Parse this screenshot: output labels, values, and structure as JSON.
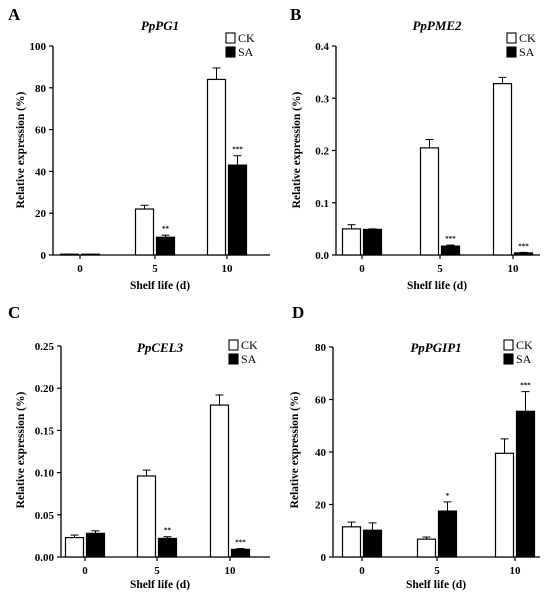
{
  "figure": {
    "panels": [
      {
        "letter": "A",
        "title": "PpPG1"
      },
      {
        "letter": "B",
        "title": "PpPME2"
      },
      {
        "letter": "C",
        "title": "PpCEL3"
      },
      {
        "letter": "D",
        "title": "PpPGIP1"
      }
    ]
  },
  "chart_data": [
    {
      "type": "bar",
      "panel": "A",
      "title": "PpPG1",
      "xlabel": "Shelf life (d)",
      "ylabel": "Relative expression (%)",
      "categories": [
        "0",
        "5",
        "10"
      ],
      "ylim": [
        0,
        100
      ],
      "yticks": [
        "0",
        "20",
        "40",
        "60",
        "80",
        "100"
      ],
      "legend_position": "top-right",
      "series": [
        {
          "name": "CK",
          "fill": "#ffffff",
          "values": [
            0.3,
            22,
            84
          ],
          "errors": [
            0.1,
            1.8,
            5.5
          ]
        },
        {
          "name": "SA",
          "fill": "#000000",
          "values": [
            0.2,
            8.5,
            43
          ],
          "errors": [
            0.1,
            1.0,
            4.5
          ]
        }
      ],
      "significance": [
        "",
        "**",
        "***"
      ]
    },
    {
      "type": "bar",
      "panel": "B",
      "title": "PpPME2",
      "xlabel": "Shelf life (d)",
      "ylabel": "Relative expression (%)",
      "categories": [
        "0",
        "5",
        "10"
      ],
      "ylim": [
        0,
        0.4
      ],
      "yticks": [
        "0.0",
        "0.1",
        "0.2",
        "0.3",
        "0.4"
      ],
      "legend_position": "top-right",
      "series": [
        {
          "name": "CK",
          "fill": "#ffffff",
          "values": [
            0.05,
            0.205,
            0.328
          ],
          "errors": [
            0.008,
            0.016,
            0.012
          ]
        },
        {
          "name": "SA",
          "fill": "#000000",
          "values": [
            0.049,
            0.017,
            0.004
          ],
          "errors": [
            0.001,
            0.002,
            0.001
          ]
        }
      ],
      "significance": [
        "",
        "***",
        "***"
      ]
    },
    {
      "type": "bar",
      "panel": "C",
      "title": "PpCEL3",
      "xlabel": "Shelf life (d)",
      "ylabel": "Relative expression (%)",
      "categories": [
        "0",
        "5",
        "10"
      ],
      "ylim": [
        0,
        0.25
      ],
      "yticks": [
        "0.00",
        "0.05",
        "0.10",
        "0.15",
        "0.20",
        "0.25"
      ],
      "legend_position": "top-right",
      "series": [
        {
          "name": "CK",
          "fill": "#ffffff",
          "values": [
            0.023,
            0.096,
            0.18
          ],
          "errors": [
            0.003,
            0.007,
            0.012
          ]
        },
        {
          "name": "SA",
          "fill": "#000000",
          "values": [
            0.028,
            0.022,
            0.009
          ],
          "errors": [
            0.003,
            0.002,
            0.001
          ]
        }
      ],
      "significance": [
        "",
        "**",
        "***"
      ]
    },
    {
      "type": "bar",
      "panel": "D",
      "title": "PpPGIP1",
      "xlabel": "Shelf life (d)",
      "ylabel": "Relative expression (%)",
      "categories": [
        "0",
        "5",
        "10"
      ],
      "ylim": [
        0,
        80
      ],
      "yticks": [
        "0",
        "20",
        "40",
        "60",
        "80"
      ],
      "legend_position": "top-right",
      "series": [
        {
          "name": "CK",
          "fill": "#ffffff",
          "values": [
            11.5,
            6.8,
            39.5
          ],
          "errors": [
            1.8,
            0.8,
            5.5
          ]
        },
        {
          "name": "SA",
          "fill": "#000000",
          "values": [
            10.2,
            17.5,
            55.5
          ],
          "errors": [
            2.8,
            3.5,
            7.5
          ]
        }
      ],
      "significance": [
        "",
        "*",
        "***"
      ]
    }
  ]
}
